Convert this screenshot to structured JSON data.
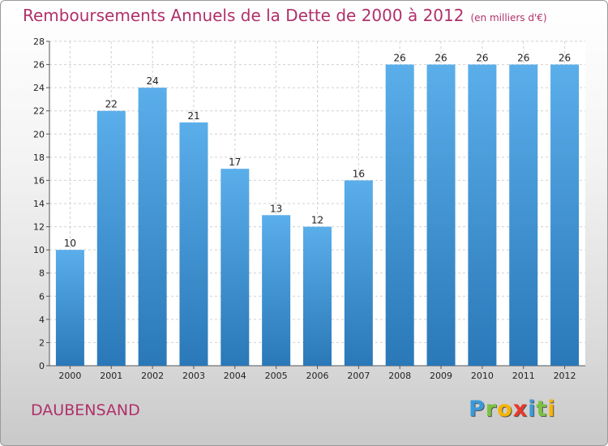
{
  "chart_data": {
    "type": "bar",
    "title": "Remboursements Annuels de la Dette de 2000 à 2012",
    "subtitle": "(en milliers d'€)",
    "categories": [
      "2000",
      "2001",
      "2002",
      "2003",
      "2004",
      "2005",
      "2006",
      "2007",
      "2008",
      "2009",
      "2010",
      "2011",
      "2012"
    ],
    "values": [
      10,
      22,
      24,
      21,
      17,
      13,
      12,
      16,
      26,
      26,
      26,
      26,
      26
    ],
    "ylim": [
      0,
      28
    ],
    "yticks": [
      0,
      2,
      4,
      6,
      8,
      10,
      12,
      14,
      16,
      18,
      20,
      22,
      24,
      26,
      28
    ],
    "grid": true,
    "bar_color_top": "#5aaeea",
    "bar_color_bottom": "#2a78b8"
  },
  "location": "DAUBENSAND",
  "logo": {
    "letters": [
      "P",
      "r",
      "o",
      "x",
      "i",
      "t",
      "i"
    ],
    "colors": [
      "#3a9ad9",
      "#7cc242",
      "#f7b500",
      "#e8392c",
      "#3a9ad9",
      "#7cc242",
      "#f7b500"
    ]
  },
  "colors": {
    "title": "#b0306a"
  }
}
